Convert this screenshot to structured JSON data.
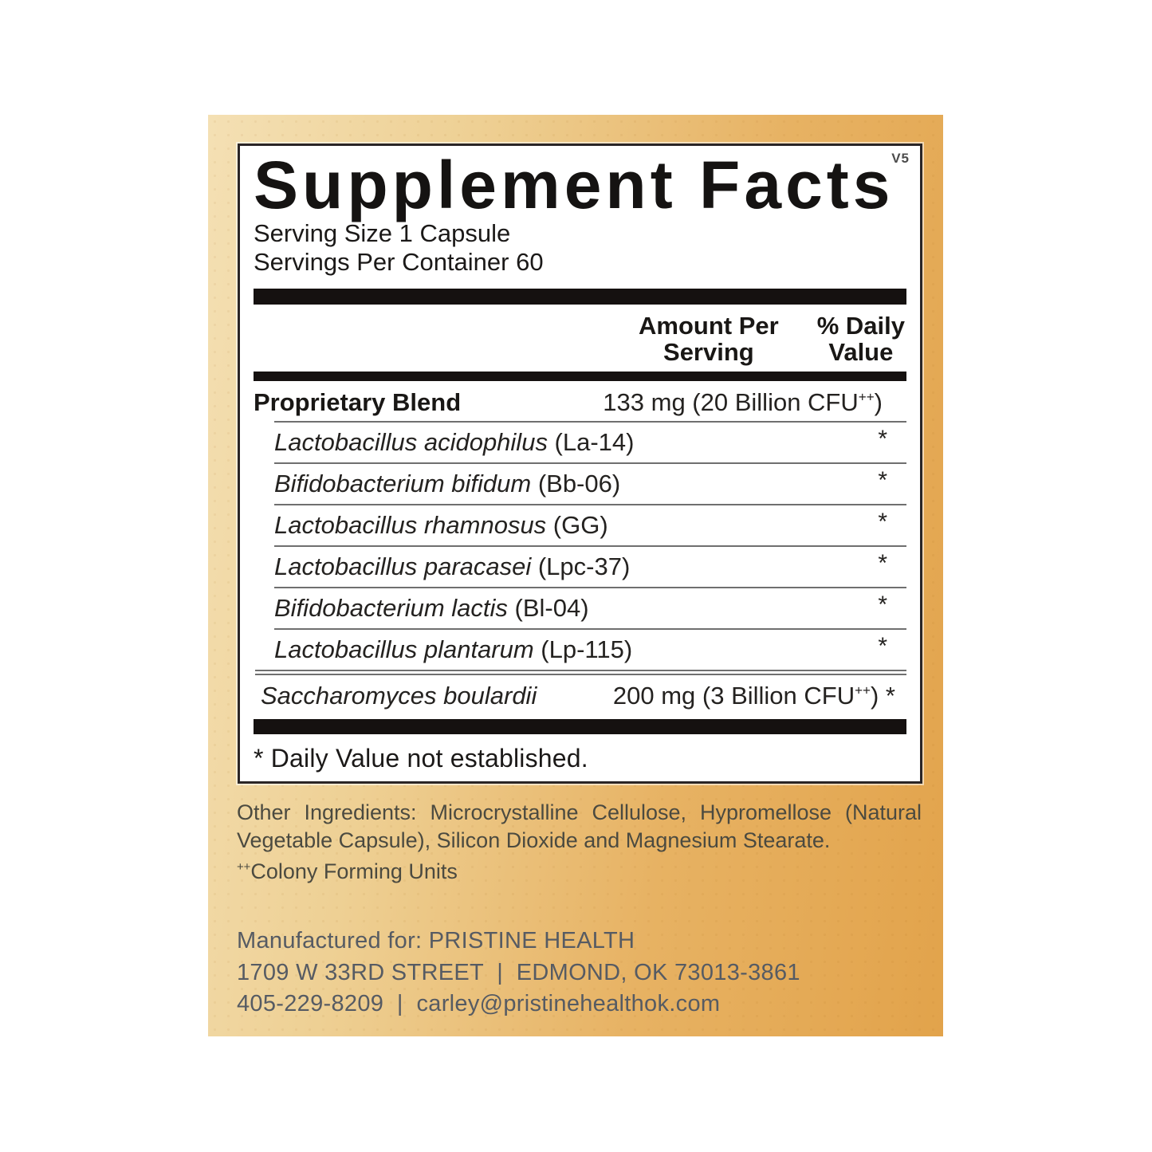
{
  "colors": {
    "background_orange": "#e2a34b",
    "background_tan": "#f4e0b4",
    "panel_background": "#ffffff",
    "panel_border": "#2a2526",
    "bar_black": "#151110",
    "label_text": "#1b1918",
    "notes_text": "#4b4a40",
    "manufacturer_text": "#565b63"
  },
  "panel": {
    "title": "Supplement Facts",
    "version_tag": "V5",
    "serving_size": "Serving Size 1 Capsule",
    "servings_per_container": "Servings Per Container 60",
    "columns": {
      "amount_line1": "Amount Per",
      "amount_line2": "Serving",
      "dv_line1": "% Daily",
      "dv_line2": "Value"
    },
    "blend": {
      "name": "Proprietary Blend",
      "amount_text": "133 mg (20 Billion CFU",
      "amount_sup": "++",
      "amount_suffix": ")"
    },
    "ingredients": [
      {
        "species": "Lactobacillus acidophilus",
        "strain": " (La-14)",
        "dv": "*"
      },
      {
        "species": "Bifidobacterium bifidum",
        "strain": " (Bb-06)",
        "dv": "*"
      },
      {
        "species": "Lactobacillus rhamnosus",
        "strain": " (GG)",
        "dv": "*"
      },
      {
        "species": "Lactobacillus paracasei",
        "strain": "  (Lpc-37)",
        "dv": "*"
      },
      {
        "species": "Bifidobacterium lactis",
        "strain": " (Bl-04)",
        "dv": "*"
      },
      {
        "species": "Lactobacillus plantarum",
        "strain": " (Lp-115)",
        "dv": "*"
      }
    ],
    "saccharomyces": {
      "species": "Saccharomyces boulardii",
      "amount_text": "200 mg (3 Billion CFU",
      "amount_sup": "++",
      "amount_suffix": ") *"
    },
    "footnote": "* Daily Value not established."
  },
  "notes": {
    "other_ingredients": "Other Ingredients: Microcrystalline Cellulose, Hypromellose (Natural Vegetable Capsule), Silicon Dioxide and Magnesium Stearate.",
    "cfu_sup": "++",
    "cfu_text": "Colony Forming Units"
  },
  "manufacturer": {
    "line1": "Manufactured for: PRISTINE HEALTH",
    "line2": "1709 W 33RD STREET  |  EDMOND, OK 73013-3861",
    "line3": "405-229-8209  |  carley@pristinehealthok.com"
  }
}
